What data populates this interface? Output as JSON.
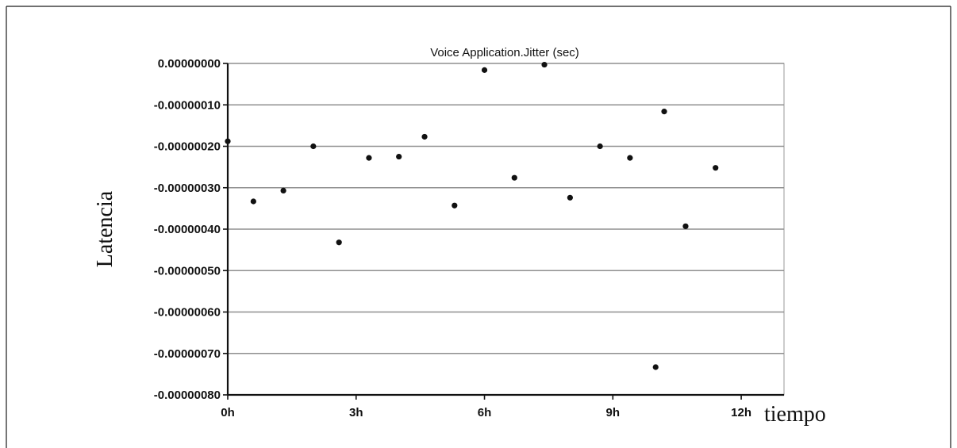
{
  "chart_data": {
    "type": "scatter",
    "title": "Voice Application.Jitter (sec)",
    "xlabel": "tiempo",
    "ylabel": "Latencia",
    "xlim": [
      0,
      13
    ],
    "ylim": [
      -8e-07,
      0
    ],
    "x_ticks": [
      {
        "value": 0,
        "label": "0h"
      },
      {
        "value": 3,
        "label": "3h"
      },
      {
        "value": 6,
        "label": "6h"
      },
      {
        "value": 9,
        "label": "9h"
      },
      {
        "value": 12,
        "label": "12h"
      }
    ],
    "y_ticks": [
      {
        "value": 0,
        "label": "0.00000000"
      },
      {
        "value": -1e-07,
        "label": "-0.00000010"
      },
      {
        "value": -2e-07,
        "label": "-0.00000020"
      },
      {
        "value": -3e-07,
        "label": "-0.00000030"
      },
      {
        "value": -4e-07,
        "label": "-0.00000040"
      },
      {
        "value": -5e-07,
        "label": "-0.00000050"
      },
      {
        "value": -6e-07,
        "label": "-0.00000060"
      },
      {
        "value": -7e-07,
        "label": "-0.00000070"
      },
      {
        "value": -8e-07,
        "label": "-0.00000080"
      }
    ],
    "grid": {
      "horizontal": true,
      "vertical": false
    },
    "series": [
      {
        "points": [
          {
            "x": 0.0,
            "y": -1.88e-07
          },
          {
            "x": 0.6,
            "y": -3.33e-07
          },
          {
            "x": 1.3,
            "y": -3.07e-07
          },
          {
            "x": 2.0,
            "y": -2e-07
          },
          {
            "x": 2.6,
            "y": -4.32e-07
          },
          {
            "x": 3.3,
            "y": -2.28e-07
          },
          {
            "x": 4.0,
            "y": -2.25e-07
          },
          {
            "x": 4.6,
            "y": -1.77e-07
          },
          {
            "x": 5.3,
            "y": -3.43e-07
          },
          {
            "x": 6.0,
            "y": -1.6e-08
          },
          {
            "x": 6.7,
            "y": -2.76e-07
          },
          {
            "x": 7.4,
            "y": -3e-09
          },
          {
            "x": 8.0,
            "y": -3.24e-07
          },
          {
            "x": 8.7,
            "y": -2e-07
          },
          {
            "x": 9.4,
            "y": -2.28e-07
          },
          {
            "x": 10.0,
            "y": -7.33e-07
          },
          {
            "x": 10.2,
            "y": -1.16e-07
          },
          {
            "x": 10.7,
            "y": -3.93e-07
          },
          {
            "x": 11.4,
            "y": -2.52e-07
          }
        ]
      }
    ]
  }
}
